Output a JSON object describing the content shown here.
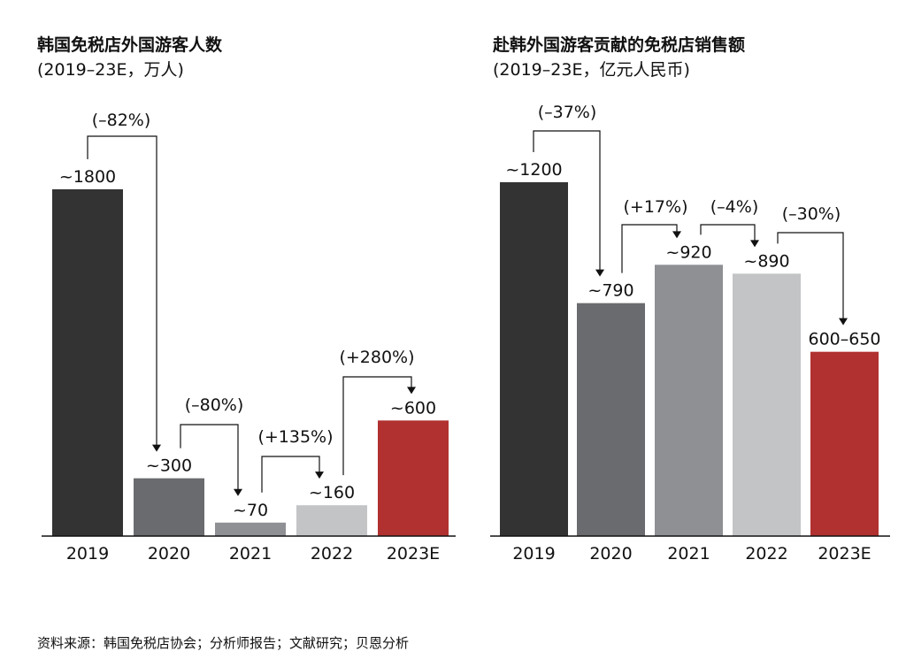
{
  "charts": [
    {
      "title": "韩国免税店外国游客人数",
      "subtitle": "(2019–23E，万人)"
    },
    {
      "title": "赴韩外国游客贡献的免税店销售额",
      "subtitle": "(2019–23E，亿元人民币)"
    }
  ],
  "chart_data": [
    {
      "type": "bar",
      "title": "韩国免税店外国游客人数",
      "subtitle": "(2019–23E，万人)",
      "categories": [
        "2019",
        "2020",
        "2021",
        "2022",
        "2023E"
      ],
      "values": [
        1800,
        300,
        70,
        160,
        600
      ],
      "value_labels": [
        "~1800",
        "~300",
        "~70",
        "~160",
        "~600"
      ],
      "colors": [
        "#333333",
        "#6a6b6e",
        "#8f9094",
        "#c3c4c6",
        "#b0312f"
      ],
      "ylim": [
        0,
        1800
      ],
      "grid": false,
      "changes": [
        {
          "from": "2019",
          "to": "2020",
          "label": "(–82%)"
        },
        {
          "from": "2020",
          "to": "2021",
          "label": "(–80%)"
        },
        {
          "from": "2021",
          "to": "2022",
          "label": "(+135%)"
        },
        {
          "from": "2022",
          "to": "2023E",
          "label": "(+280%)"
        }
      ]
    },
    {
      "type": "bar",
      "title": "赴韩外国游客贡献的免税店销售额",
      "subtitle": "(2019–23E，亿元人民币)",
      "categories": [
        "2019",
        "2020",
        "2021",
        "2022",
        "2023E"
      ],
      "values": [
        1200,
        790,
        920,
        890,
        625
      ],
      "value_labels": [
        "~1200",
        "~790",
        "~920",
        "~890",
        "600–650"
      ],
      "colors": [
        "#333333",
        "#6a6b6e",
        "#8f9094",
        "#c3c4c6",
        "#b0312f"
      ],
      "ylim": [
        0,
        1200
      ],
      "grid": false,
      "changes": [
        {
          "from": "2019",
          "to": "2020",
          "label": "(–37%)"
        },
        {
          "from": "2020",
          "to": "2021",
          "label": "(+17%)"
        },
        {
          "from": "2021",
          "to": "2022",
          "label": "(–4%)"
        },
        {
          "from": "2022",
          "to": "2023E",
          "label": "(–30%)"
        }
      ]
    }
  ],
  "source_note": "资料来源：韩国免税店协会；分析师报告；文献研究；贝恩分析"
}
